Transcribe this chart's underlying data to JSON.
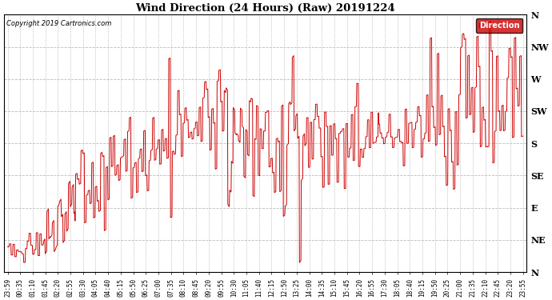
{
  "title": "Wind Direction (24 Hours) (Raw) 20191224",
  "copyright": "Copyright 2019 Cartronics.com",
  "legend_label": "Direction",
  "legend_bg": "#cc0000",
  "legend_text_color": "#ffffff",
  "line_color": "#cc0000",
  "background_color": "#ffffff",
  "grid_color": "#bbbbbb",
  "ytick_labels": [
    "N",
    "NW",
    "W",
    "SW",
    "S",
    "SE",
    "E",
    "NE",
    "N"
  ],
  "ytick_values": [
    360,
    315,
    270,
    225,
    180,
    135,
    90,
    45,
    0
  ],
  "ylim": [
    0,
    360
  ],
  "xtick_labels": [
    "23:59",
    "00:35",
    "01:10",
    "01:45",
    "02:20",
    "02:55",
    "03:30",
    "04:05",
    "04:40",
    "05:15",
    "05:50",
    "06:25",
    "07:00",
    "07:35",
    "08:10",
    "08:45",
    "09:20",
    "09:55",
    "10:30",
    "11:05",
    "11:40",
    "12:15",
    "12:50",
    "13:25",
    "14:00",
    "14:35",
    "15:10",
    "15:45",
    "16:20",
    "16:55",
    "17:30",
    "18:05",
    "18:40",
    "19:15",
    "19:50",
    "20:25",
    "21:00",
    "21:35",
    "22:10",
    "22:45",
    "23:20",
    "23:55"
  ],
  "seed": 12345
}
